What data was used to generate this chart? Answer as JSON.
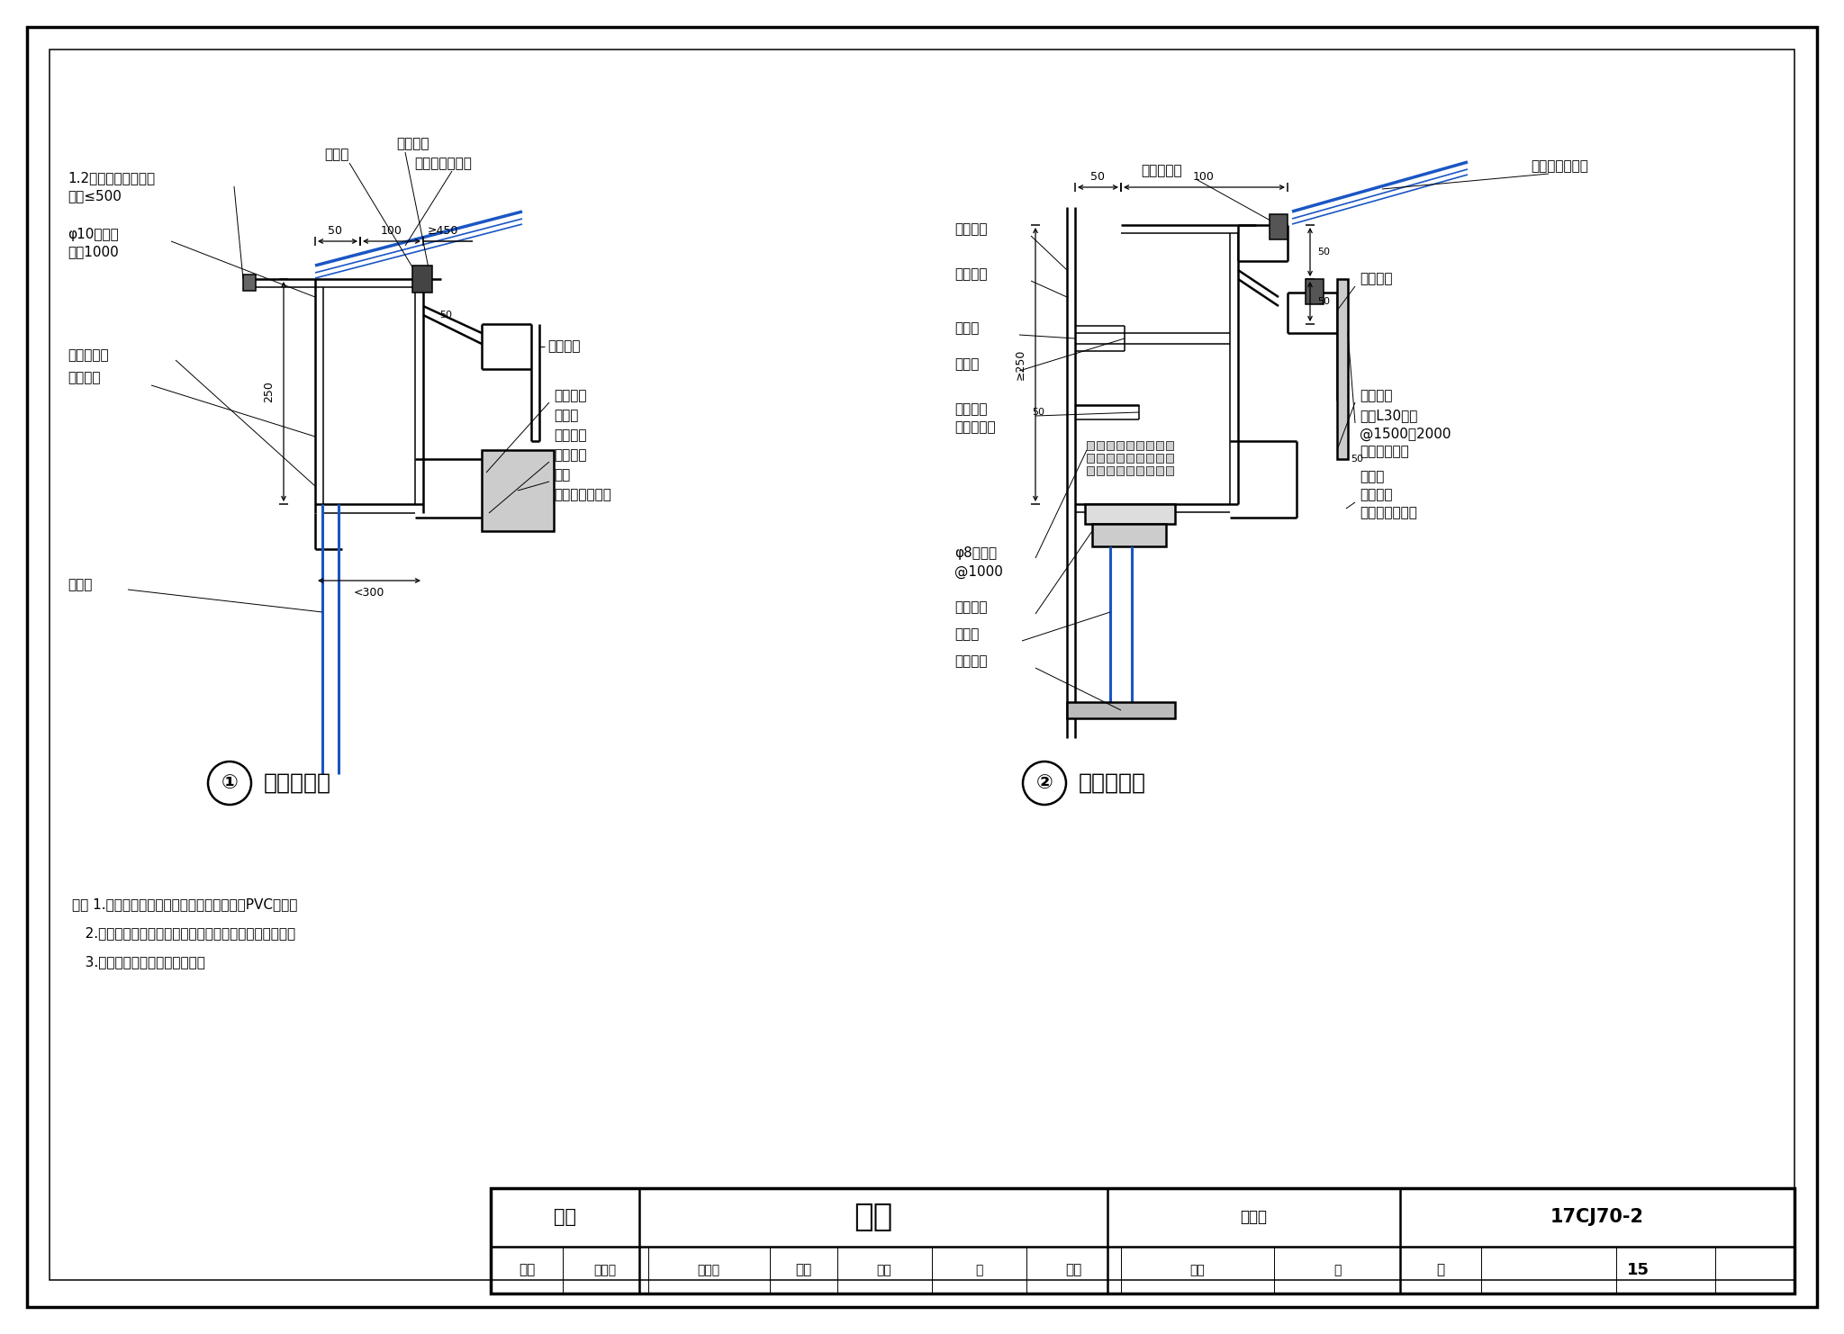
{
  "bg": "#ffffff",
  "bk": "#000000",
  "bl": "#1a56c4",
  "gray1": "#555555",
  "gray2": "#888888",
  "gray3": "#bbbbbb",
  "gray4": "#dddddd",
  "d1_title": "檐沟（一）",
  "d2_title": "檐沟（二）",
  "notes": [
    "注： 1.鑉板檐沟配套使用的雨水管应为彩板或PVC材质。",
    "   2.檐沟断面、檐沟支架、水落管直径及间距按工程设计。",
    "   3.檐沟的溢水系统按工程设计。"
  ],
  "tb": {
    "subject": "屋面",
    "name": "檐沟",
    "atlas_label": "图集号",
    "atlas_num": "17CJ70-2",
    "page_label": "页",
    "page_num": "15",
    "r_label": "审核",
    "r_name": "吴文光",
    "c_label": "校对",
    "c_name": "冯玉",
    "d_label": "设计",
    "d_name": "张鑫"
  }
}
